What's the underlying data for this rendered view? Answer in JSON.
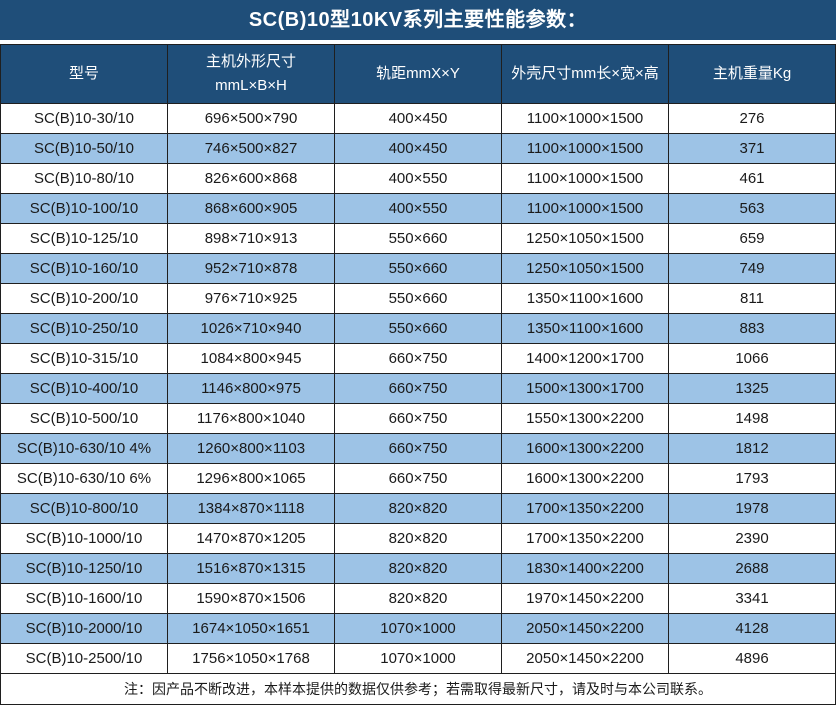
{
  "title": "SC(B)10型10KV系列主要性能参数：",
  "note": "注：因产品不断改进，本样本提供的数据仅供参考；若需取得最新尺寸，请及时与本公司联系。",
  "colors": {
    "header_bg": "#1F4E79",
    "row_stripe_bg": "#9DC3E6",
    "border": "#1F1F1F",
    "header_text": "#FFFFFF",
    "body_text": "#1A1A1A"
  },
  "table": {
    "headers": [
      "型号",
      "主机外形尺寸\nmmL×B×H",
      "轨距mmX×Y",
      "外壳尺寸mm长×宽×高",
      "主机重量Kg"
    ],
    "column_keys": [
      "model",
      "main-dimensions",
      "rail-gauge",
      "shell-dimensions",
      "weight"
    ],
    "rows": [
      [
        "SC(B)10-30/10",
        "696×500×790",
        "400×450",
        "1100×1000×1500",
        "276"
      ],
      [
        "SC(B)10-50/10",
        "746×500×827",
        "400×450",
        "1100×1000×1500",
        "371"
      ],
      [
        "SC(B)10-80/10",
        "826×600×868",
        "400×550",
        "1100×1000×1500",
        "461"
      ],
      [
        "SC(B)10-100/10",
        "868×600×905",
        "400×550",
        "1100×1000×1500",
        "563"
      ],
      [
        "SC(B)10-125/10",
        "898×710×913",
        "550×660",
        "1250×1050×1500",
        "659"
      ],
      [
        "SC(B)10-160/10",
        "952×710×878",
        "550×660",
        "1250×1050×1500",
        "749"
      ],
      [
        "SC(B)10-200/10",
        "976×710×925",
        "550×660",
        "1350×1100×1600",
        "811"
      ],
      [
        "SC(B)10-250/10",
        "1026×710×940",
        "550×660",
        "1350×1100×1600",
        "883"
      ],
      [
        "SC(B)10-315/10",
        "1084×800×945",
        "660×750",
        "1400×1200×1700",
        "1066"
      ],
      [
        "SC(B)10-400/10",
        "1146×800×975",
        "660×750",
        "1500×1300×1700",
        "1325"
      ],
      [
        "SC(B)10-500/10",
        "1176×800×1040",
        "660×750",
        "1550×1300×2200",
        "1498"
      ],
      [
        "SC(B)10-630/10 4%",
        "1260×800×1103",
        "660×750",
        "1600×1300×2200",
        "1812"
      ],
      [
        "SC(B)10-630/10 6%",
        "1296×800×1065",
        "660×750",
        "1600×1300×2200",
        "1793"
      ],
      [
        "SC(B)10-800/10",
        "1384×870×1118",
        "820×820",
        "1700×1350×2200",
        "1978"
      ],
      [
        "SC(B)10-1000/10",
        "1470×870×1205",
        "820×820",
        "1700×1350×2200",
        "2390"
      ],
      [
        "SC(B)10-1250/10",
        "1516×870×1315",
        "820×820",
        "1830×1400×2200",
        "2688"
      ],
      [
        "SC(B)10-1600/10",
        "1590×870×1506",
        "820×820",
        "1970×1450×2200",
        "3341"
      ],
      [
        "SC(B)10-2000/10",
        "1674×1050×1651",
        "1070×1000",
        "2050×1450×2200",
        "4128"
      ],
      [
        "SC(B)10-2500/10",
        "1756×1050×1768",
        "1070×1000",
        "2050×1450×2200",
        "4896"
      ]
    ]
  }
}
